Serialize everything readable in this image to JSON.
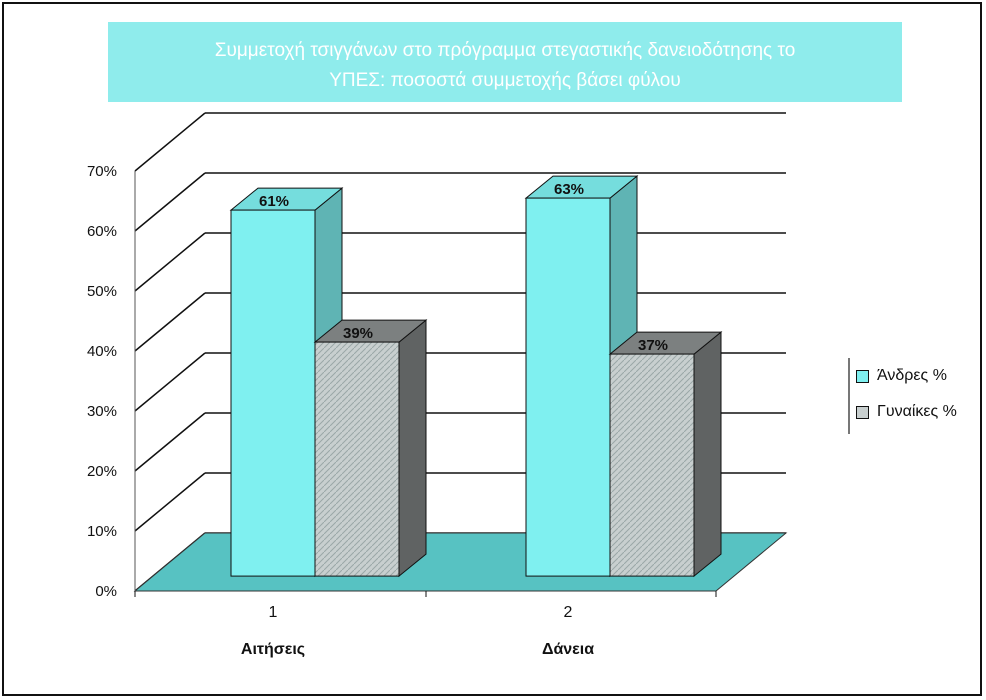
{
  "chart_data": {
    "type": "bar",
    "title": "Συμμετοχή τσιγγάνων στο πρόγραμμα στεγαστικής δανειοδότησης το ΥΠΕΣ: ποσοστά συμμετοχής βάσει φύλου",
    "title_lines": [
      "Συμμετοχή τσιγγάνων στο πρόγραμμα στεγαστικής δανειοδότησης το",
      "ΥΠΕΣ: ποσοστά συμμετοχής βάσει φύλου"
    ],
    "categories": [
      "1",
      "2"
    ],
    "category_labels": [
      "Αιτήσεις",
      "Δάνεια"
    ],
    "series": [
      {
        "name": "Άνδρες %",
        "values": [
          61,
          63
        ],
        "labels": [
          "61%",
          "63%"
        ],
        "color": "#7ff0f0"
      },
      {
        "name": "Γυναίκες %",
        "values": [
          39,
          37
        ],
        "labels": [
          "39%",
          "37%"
        ],
        "color": "#c8cfcf"
      }
    ],
    "ylim": [
      0,
      70
    ],
    "yticks": [
      0,
      10,
      20,
      30,
      40,
      50,
      60,
      70
    ],
    "ytick_labels": [
      "0%",
      "10%",
      "20%",
      "30%",
      "40%",
      "50%",
      "60%",
      "70%"
    ],
    "xlabel": "",
    "ylabel": "",
    "grid": true,
    "legend": "right",
    "floor_color": "#57c2c2",
    "title_background": "#8fecec"
  }
}
